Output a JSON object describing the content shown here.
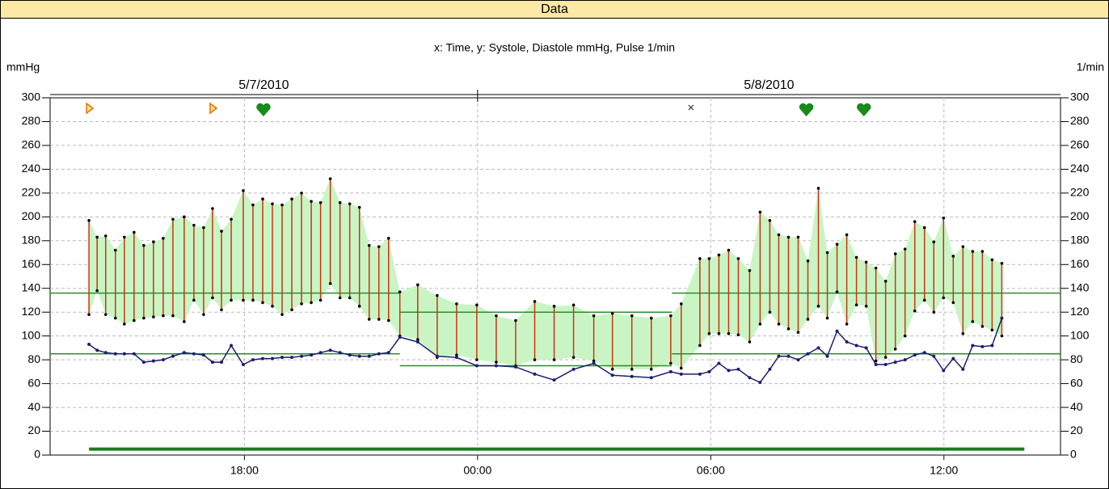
{
  "panel_title": "Data",
  "chart_data": {
    "type": "line",
    "title": "x: Time,  y: Systole, Diastole mmHg, Pulse 1/min",
    "ylabel": "mmHg",
    "y2label": "1/min",
    "xlim": [
      13,
      39
    ],
    "xticks": [
      {
        "value": 18,
        "label": "18:00"
      },
      {
        "value": 24,
        "label": "00:00"
      },
      {
        "value": 30,
        "label": "06:00"
      },
      {
        "value": 36,
        "label": "12:00"
      }
    ],
    "dates": [
      {
        "value": 0,
        "label": "5/7/2010"
      },
      {
        "value": 24,
        "label": "5/8/2010"
      }
    ],
    "ylim": [
      0,
      300
    ],
    "yticks": [
      0,
      20,
      40,
      60,
      80,
      100,
      120,
      140,
      160,
      180,
      200,
      220,
      240,
      260,
      280,
      300
    ],
    "y2lim": [
      0,
      300
    ],
    "y2ticks": [
      0,
      20,
      40,
      60,
      80,
      100,
      120,
      140,
      160,
      180,
      200,
      220,
      240,
      260,
      280,
      300
    ],
    "grid": true,
    "fill_color": "#c9f5c5",
    "x": [
      14.0,
      14.21,
      14.43,
      14.68,
      14.91,
      15.16,
      15.41,
      15.66,
      15.91,
      16.16,
      16.45,
      16.7,
      16.95,
      17.18,
      17.41,
      17.66,
      17.97,
      18.22,
      18.47,
      18.72,
      18.97,
      19.22,
      19.47,
      19.72,
      19.96,
      20.21,
      20.46,
      20.71,
      20.96,
      21.21,
      21.46,
      21.71,
      22.0,
      22.46,
      22.96,
      23.46,
      23.98,
      24.48,
      24.98,
      25.47,
      25.97,
      26.47,
      26.99,
      27.47,
      27.97,
      28.47,
      28.97,
      29.24,
      29.72,
      29.96,
      30.21,
      30.46,
      30.71,
      31.0,
      31.27,
      31.52,
      31.75,
      32.0,
      32.25,
      32.5,
      32.77,
      33.0,
      33.25,
      33.5,
      33.75,
      34.0,
      34.25,
      34.5,
      34.75,
      35.0,
      35.25,
      35.5,
      35.74,
      35.99,
      36.24,
      36.49,
      36.74,
      36.99,
      37.24,
      37.49
    ],
    "series": [
      {
        "color": "#cc3311",
        "values": [
          197,
          183,
          184,
          172,
          183,
          187,
          176,
          179,
          182,
          198,
          200,
          193,
          191,
          207,
          188,
          198,
          222,
          210,
          215,
          211,
          210,
          215,
          220,
          213,
          212,
          232,
          212,
          211,
          208,
          176,
          175,
          182,
          137,
          143,
          134,
          127,
          126,
          117,
          113,
          129,
          125,
          126,
          117,
          119,
          117,
          115,
          117,
          127,
          165,
          165,
          168,
          172,
          165,
          155,
          204,
          197,
          185,
          183,
          183,
          163,
          224,
          170,
          177,
          185,
          166,
          162,
          157,
          146,
          169,
          173,
          196,
          191,
          179,
          199,
          167,
          175,
          171,
          171,
          164,
          161
        ]
      },
      {
        "color": "#cc3311",
        "values": [
          118,
          138,
          118,
          115,
          110,
          113,
          115,
          116,
          117,
          117,
          112,
          130,
          118,
          132,
          122,
          130,
          130,
          130,
          128,
          125,
          118,
          122,
          127,
          128,
          130,
          144,
          132,
          132,
          125,
          114,
          114,
          113,
          100,
          97,
          82,
          84,
          80,
          78,
          75,
          80,
          80,
          82,
          79,
          72,
          72,
          72,
          77,
          73,
          92,
          102,
          102,
          102,
          101,
          95,
          110,
          120,
          110,
          106,
          103,
          114,
          125,
          115,
          137,
          110,
          126,
          125,
          79,
          82,
          89,
          100,
          121,
          130,
          120,
          132,
          128,
          102,
          112,
          108,
          105,
          100
        ]
      },
      {
        "color": "#1a1f6e",
        "axis": "y2",
        "values": [
          93,
          88,
          86,
          85,
          85,
          85,
          78,
          79,
          80,
          83,
          86,
          85,
          84,
          78,
          78,
          92,
          76,
          80,
          81,
          81,
          82,
          82,
          83,
          84,
          86,
          88,
          86,
          84,
          83,
          83,
          85,
          86,
          99,
          95,
          83,
          82,
          75,
          75,
          74,
          68,
          63,
          72,
          77,
          67,
          66,
          65,
          70,
          68,
          68,
          70,
          77,
          71,
          72,
          65,
          61,
          72,
          83,
          83,
          80,
          85,
          90,
          83,
          104,
          95,
          92,
          90,
          76,
          76,
          78,
          80,
          84,
          86,
          83,
          71,
          81,
          72,
          92,
          91,
          92,
          115
        ]
      }
    ],
    "reference_lines": [
      {
        "x": [
          13,
          22
        ],
        "y": 136
      },
      {
        "x": [
          13,
          22
        ],
        "y": 85
      },
      {
        "x": [
          22,
          29
        ],
        "y": 120
      },
      {
        "x": [
          22,
          29
        ],
        "y": 75
      },
      {
        "x": [
          29,
          39
        ],
        "y": 136
      },
      {
        "x": [
          29,
          39
        ],
        "y": 85
      }
    ],
    "reference_color": "#2e8b2e",
    "baseline_bar": {
      "x": [
        14.0,
        38.07
      ],
      "y": 5,
      "color": "#1e7a1e"
    },
    "events": [
      {
        "x": 14.0,
        "symbol": "triangle"
      },
      {
        "x": 17.18,
        "symbol": "triangle"
      },
      {
        "x": 18.49,
        "symbol": "heart"
      },
      {
        "x": 29.49,
        "symbol": "cross"
      },
      {
        "x": 32.46,
        "symbol": "heart"
      },
      {
        "x": 33.94,
        "symbol": "heart"
      }
    ]
  }
}
